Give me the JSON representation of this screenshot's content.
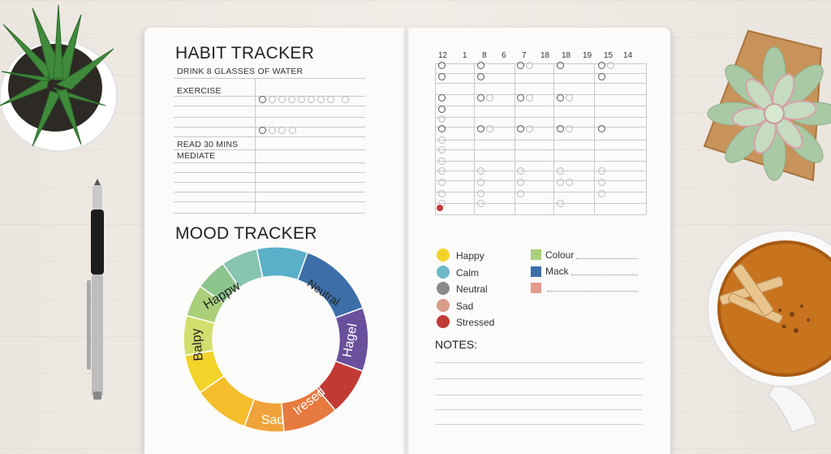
{
  "habit_tracker": {
    "title": "HABIT TRACKER",
    "habits": [
      "DRINK 8 GLASSES OF WATER",
      "EXERCISE",
      "READ 30 MINS",
      "MEDIATE"
    ],
    "day_headers": [
      "12",
      "1",
      "8",
      "6",
      "7",
      "18",
      "18",
      "19",
      "15",
      "14"
    ]
  },
  "mood_tracker": {
    "title": "MOOD TRACKER",
    "ring_labels": [
      "Happw",
      "Neutral",
      "Hagel",
      "Iresed",
      "Sad",
      "Balpy"
    ],
    "legend": [
      {
        "label": "Happy",
        "color": "#f2d32a"
      },
      {
        "label": "Calm",
        "color": "#6fb9c9"
      },
      {
        "label": "Neutral",
        "color": "#8a8a8a"
      },
      {
        "label": "Sad",
        "color": "#d99d8a"
      },
      {
        "label": "Stressed",
        "color": "#c23a34"
      }
    ],
    "key": [
      {
        "label": "Colour",
        "color": "#a9cf7a"
      },
      {
        "label": "Mack",
        "color": "#3d6ea8"
      },
      {
        "label": "",
        "color": "#e39b8d"
      }
    ]
  },
  "notes": {
    "title": "NOTES:"
  }
}
